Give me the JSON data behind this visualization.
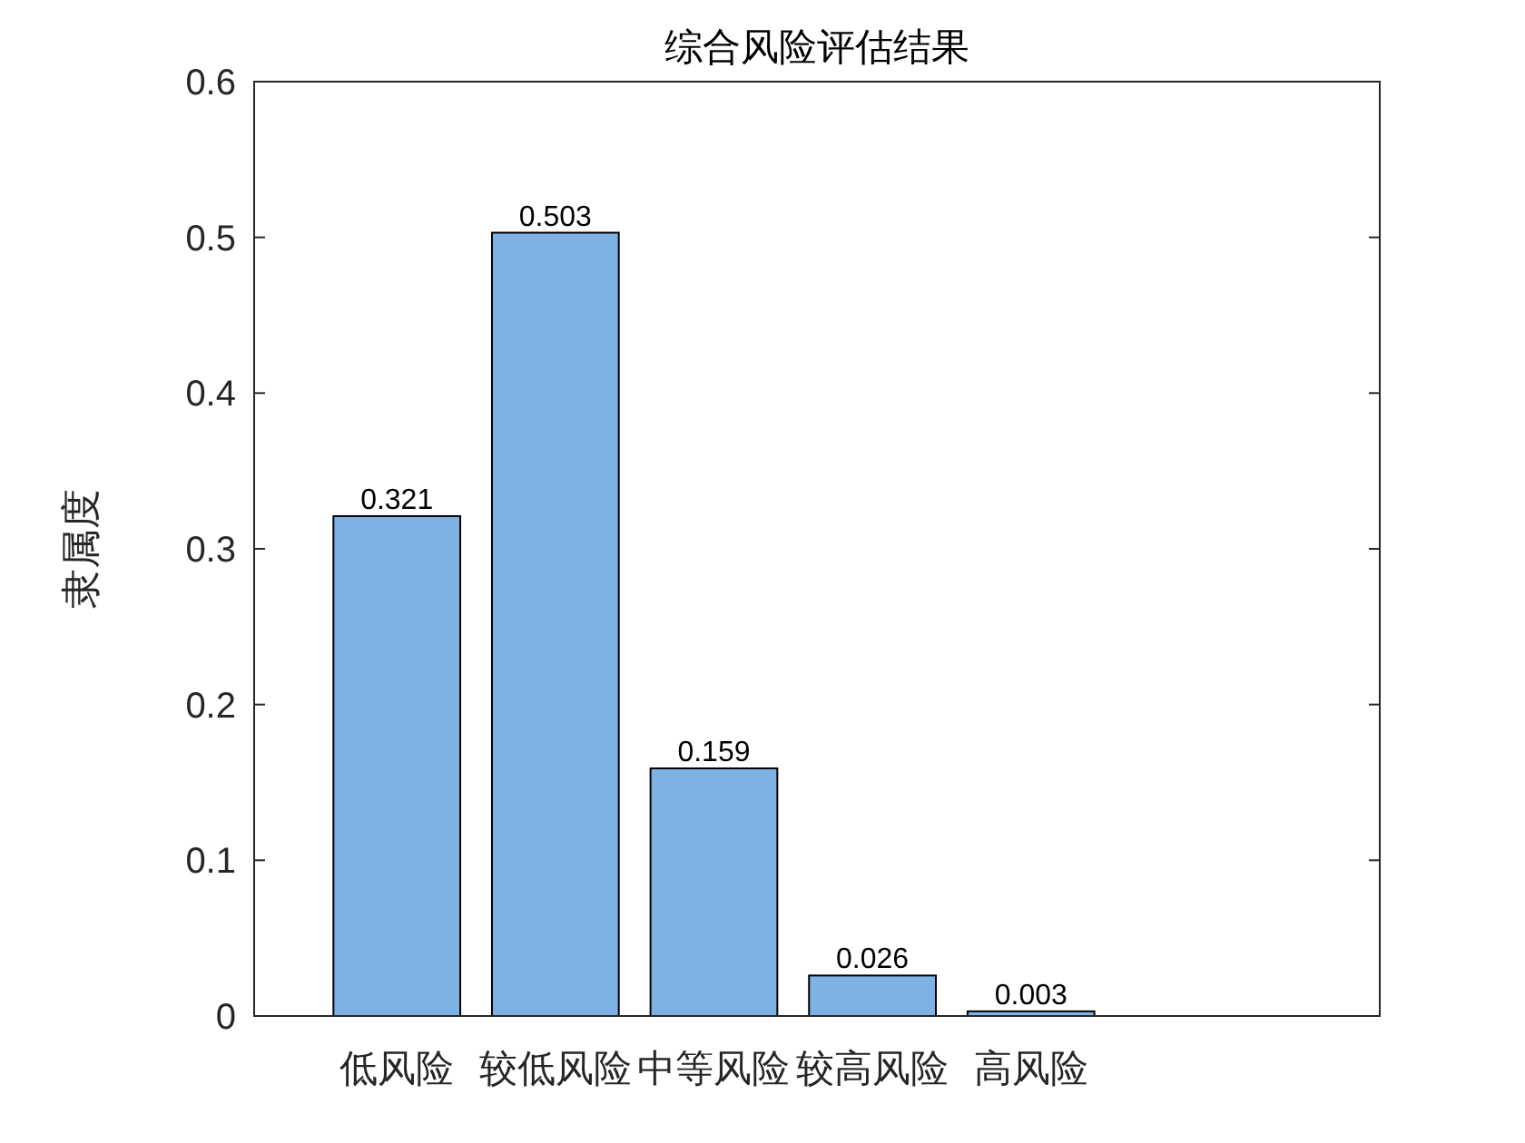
{
  "chart_data": {
    "type": "bar",
    "title": "综合风险评估结果",
    "ylabel": "隶属度",
    "categories": [
      "低风险",
      "较低风险",
      "中等风险",
      "较高风险",
      "高风险"
    ],
    "values": [
      0.321,
      0.503,
      0.159,
      0.026,
      0.003
    ],
    "color": "#7eb2e4",
    "ylim": [
      0,
      0.6
    ],
    "yticks": [
      0,
      0.1,
      0.2,
      0.3,
      0.4,
      0.5,
      0.6
    ],
    "data_labels": true
  }
}
